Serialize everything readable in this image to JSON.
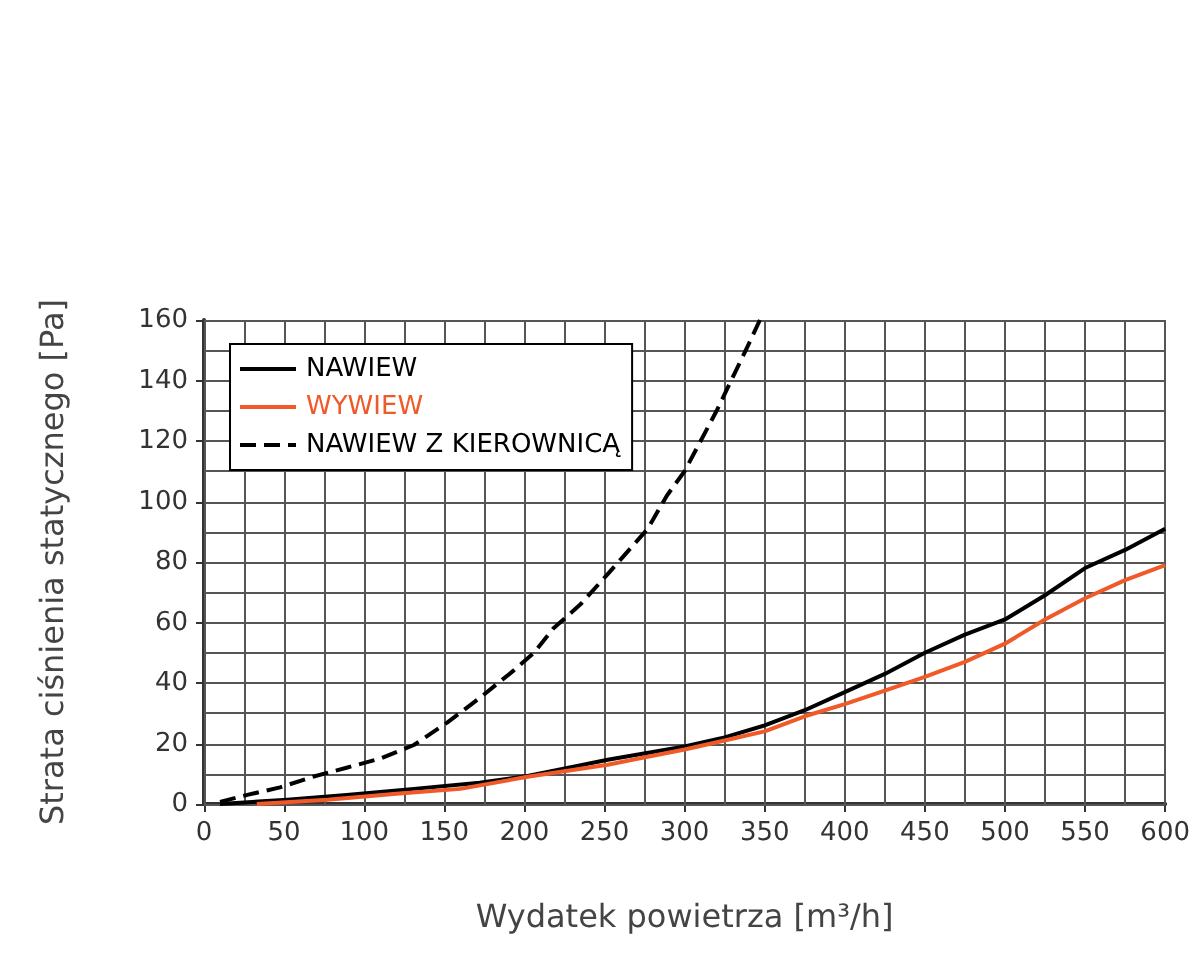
{
  "chart_data": {
    "type": "line",
    "xlabel": "Wydatek powietrza [m³/h]",
    "ylabel": "Strata ciśnienia statycznego [Pa]",
    "xlim": [
      0,
      600
    ],
    "xticks": [
      0,
      50,
      100,
      150,
      200,
      250,
      300,
      350,
      400,
      450,
      500,
      550,
      600
    ],
    "ylim": [
      0,
      160
    ],
    "yticks": [
      0,
      20,
      40,
      60,
      80,
      100,
      120,
      140,
      160
    ],
    "grid": true,
    "legend": "top left",
    "marker": "none",
    "series": [
      {
        "name": "NAWIEW",
        "color": "#000000",
        "line_style": "solid",
        "x": [
          10,
          52,
          89,
          131,
          172,
          202,
          252,
          300,
          325,
          350,
          375,
          400,
          425,
          450,
          475,
          500,
          525,
          550,
          575,
          600
        ],
        "values": [
          0,
          1.4,
          3,
          5,
          7,
          9.3,
          14.6,
          19,
          22,
          26,
          31,
          37,
          43,
          50,
          56,
          61,
          69,
          78,
          84,
          91
        ]
      },
      {
        "name": "WYWIEW",
        "color": "#f05a28",
        "line_style": "solid",
        "x": [
          33,
          77,
          122,
          160,
          202,
          252,
          300,
          325,
          350,
          375,
          400,
          425,
          450,
          475,
          500,
          525,
          550,
          575,
          600
        ],
        "values": [
          0,
          1.4,
          3.5,
          5,
          9,
          13,
          18,
          21,
          24,
          29,
          33,
          37.5,
          42,
          47,
          53,
          61,
          68,
          74,
          79
        ]
      },
      {
        "name": "NAWIEW Z KIEROWNICĄ",
        "color": "#000000",
        "line_style": "dashed",
        "x": [
          10,
          27,
          47.5,
          68,
          89,
          110,
          131,
          152,
          172,
          193,
          206,
          218,
          235,
          252,
          277,
          289,
          300,
          320,
          340,
          347
        ],
        "values": [
          0.7,
          3,
          5.5,
          9,
          12,
          15,
          19.5,
          27,
          35,
          44,
          50,
          58,
          66,
          76,
          91,
          102,
          110,
          130,
          152,
          160
        ]
      }
    ]
  }
}
